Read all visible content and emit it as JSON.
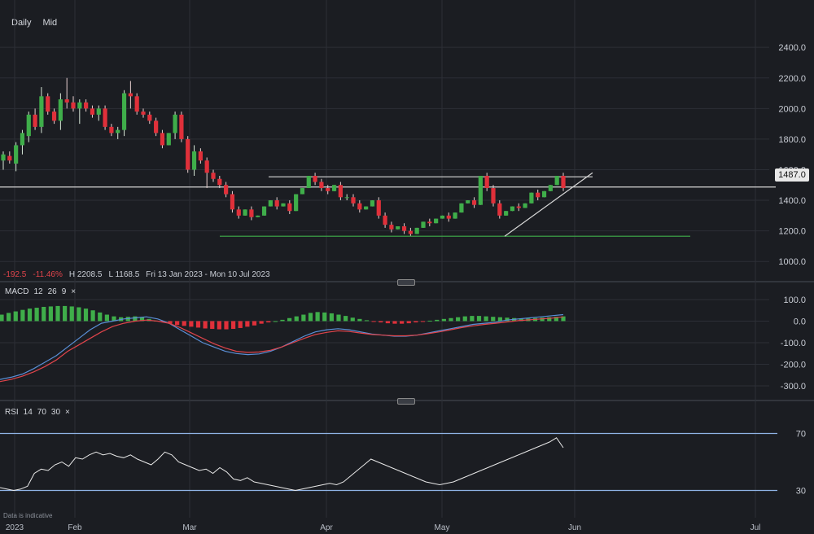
{
  "toolbar": {
    "daily": "Daily",
    "mid": "Mid"
  },
  "stats": {
    "change": "-192.5",
    "change_pct": "-11.46%",
    "high": "H 2208.5",
    "low": "L 1168.5",
    "range": "Fri 13 Jan 2023 - Mon 10 Jul 2023"
  },
  "price_badge": "1487.0",
  "macd_legend": {
    "name": "MACD",
    "p1": "12",
    "p2": "26",
    "p3": "9",
    "close": "×"
  },
  "rsi_legend": {
    "name": "RSI",
    "p1": "14",
    "p2": "70",
    "p3": "30",
    "close": "×"
  },
  "footnote": "Data is indicative",
  "colors": {
    "up": "#3fae4a",
    "down": "#e0303a",
    "macd": "#5a8fd6",
    "signal": "#e0444b",
    "rsi": "#e8e8e8",
    "band": "#8fb3e6",
    "support": "#3fae4a"
  },
  "chart_data": [
    {
      "type": "candlestick",
      "ylim": [
        900,
        2550
      ],
      "y_ticks": [
        "2400.0",
        "2200.0",
        "2000.0",
        "1800.0",
        "1600.0",
        "1400.0",
        "1200.0",
        "1000.0"
      ],
      "y_tick_values": [
        2400,
        2200,
        2000,
        1800,
        1600,
        1400,
        1200,
        1000
      ],
      "x_labels": [
        "2023",
        "Feb",
        "Mar",
        "Apr",
        "May",
        "Jun",
        "Jul"
      ],
      "current_price": 1487,
      "resistance": 1575,
      "support": 1165,
      "trend_line": [
        [
          1165,
          1580
        ]
      ],
      "candles": [
        [
          1660,
          1700,
          1620,
          1720,
          1600
        ],
        [
          1690,
          1660,
          1720,
          1640
        ],
        [
          1640,
          1760,
          1600,
          1780,
          1590
        ],
        [
          1760,
          1840,
          1720,
          1860,
          1700
        ],
        [
          1820,
          1960,
          1800,
          1980,
          1780
        ],
        [
          1960,
          1880,
          2000,
          1860
        ],
        [
          1880,
          2080,
          1860,
          2140,
          1840
        ],
        [
          2080,
          1980,
          2100,
          1960
        ],
        [
          1980,
          1920,
          2000,
          1900
        ],
        [
          1920,
          2060,
          1880,
          2100,
          1860
        ],
        [
          2060,
          2040,
          2200,
          2000
        ],
        [
          2040,
          2000,
          2080,
          1980
        ],
        [
          2000,
          2040,
          1980,
          2060,
          1900
        ],
        [
          2040,
          2000,
          2060,
          1980
        ],
        [
          2000,
          1960,
          2020,
          1940
        ],
        [
          1960,
          2000,
          1940,
          2020,
          1920
        ],
        [
          2000,
          1880,
          2020,
          1860
        ],
        [
          1880,
          1840,
          1900,
          1820
        ],
        [
          1840,
          1860,
          1820,
          1880,
          1800
        ],
        [
          1860,
          2100,
          1840,
          2120,
          1820
        ],
        [
          2100,
          2080,
          2180,
          2000
        ],
        [
          2080,
          1980,
          2100,
          1960
        ],
        [
          1980,
          1960,
          2000,
          1940
        ],
        [
          1960,
          1920,
          1980,
          1900
        ],
        [
          1920,
          1840,
          1940,
          1820
        ],
        [
          1840,
          1760,
          1860,
          1740
        ],
        [
          1760,
          1840,
          1740,
          1860
        ],
        [
          1840,
          1960,
          1820,
          1980,
          1800
        ],
        [
          1960,
          1800,
          1980,
          1780
        ],
        [
          1800,
          1600,
          1820,
          1580
        ],
        [
          1600,
          1720,
          1580,
          1760,
          1560
        ],
        [
          1720,
          1660,
          1740,
          1640
        ],
        [
          1660,
          1580,
          1680,
          1480
        ],
        [
          1580,
          1540,
          1600,
          1520
        ],
        [
          1540,
          1500,
          1560,
          1480
        ],
        [
          1500,
          1440,
          1520,
          1420
        ],
        [
          1440,
          1340,
          1460,
          1320
        ],
        [
          1340,
          1300,
          1360,
          1280
        ],
        [
          1300,
          1340,
          1280,
          1360
        ],
        [
          1340,
          1290,
          1360,
          1270
        ],
        [
          1290,
          1300,
          1280,
          1320
        ],
        [
          1300,
          1360,
          1290,
          1380
        ],
        [
          1360,
          1400,
          1340,
          1420
        ],
        [
          1400,
          1360,
          1420,
          1340
        ],
        [
          1360,
          1380,
          1340,
          1400
        ],
        [
          1380,
          1330,
          1400,
          1310
        ],
        [
          1330,
          1440,
          1320,
          1460
        ],
        [
          1440,
          1480,
          1420,
          1500
        ],
        [
          1480,
          1560,
          1460,
          1580
        ],
        [
          1560,
          1520,
          1580,
          1500
        ],
        [
          1520,
          1480,
          1540,
          1460
        ],
        [
          1480,
          1460,
          1500,
          1440
        ],
        [
          1460,
          1500,
          1440,
          1520
        ],
        [
          1500,
          1420,
          1520,
          1400
        ],
        [
          1420,
          1420,
          1440,
          1400
        ],
        [
          1420,
          1380,
          1440,
          1360
        ],
        [
          1380,
          1340,
          1400,
          1320
        ],
        [
          1340,
          1360,
          1320,
          1380
        ],
        [
          1360,
          1400,
          1340,
          1420
        ],
        [
          1400,
          1300,
          1420,
          1280
        ],
        [
          1300,
          1240,
          1320,
          1220
        ],
        [
          1240,
          1210,
          1260,
          1190
        ],
        [
          1210,
          1230,
          1190,
          1250
        ],
        [
          1230,
          1200,
          1250,
          1180
        ],
        [
          1200,
          1180,
          1220,
          1168
        ],
        [
          1180,
          1220,
          1170,
          1240
        ],
        [
          1220,
          1260,
          1210,
          1280
        ],
        [
          1260,
          1250,
          1280,
          1230
        ],
        [
          1250,
          1280,
          1240,
          1300
        ],
        [
          1280,
          1300,
          1270,
          1320
        ],
        [
          1300,
          1280,
          1320,
          1260
        ],
        [
          1280,
          1320,
          1270,
          1340
        ],
        [
          1320,
          1380,
          1300,
          1400
        ],
        [
          1380,
          1400,
          1360,
          1420
        ],
        [
          1400,
          1370,
          1420,
          1350
        ],
        [
          1370,
          1560,
          1360,
          1580
        ],
        [
          1560,
          1480,
          1580,
          1460
        ],
        [
          1480,
          1380,
          1500,
          1360
        ],
        [
          1380,
          1300,
          1400,
          1280
        ],
        [
          1300,
          1330,
          1280,
          1350
        ],
        [
          1330,
          1360,
          1320,
          1380
        ],
        [
          1360,
          1350,
          1380,
          1330
        ],
        [
          1350,
          1380,
          1340,
          1400
        ],
        [
          1380,
          1450,
          1360,
          1470
        ],
        [
          1450,
          1420,
          1470,
          1400
        ],
        [
          1420,
          1460,
          1400,
          1480
        ],
        [
          1460,
          1500,
          1440,
          1520
        ],
        [
          1500,
          1560,
          1480,
          1580
        ],
        [
          1560,
          1480,
          1580,
          1460
        ]
      ]
    },
    {
      "type": "macd",
      "ylim": [
        -330,
        130
      ],
      "y_ticks": [
        "100.0",
        "0.0",
        "-100.0",
        "-200.0",
        "-300.0"
      ],
      "y_tick_values": [
        100,
        0,
        -100,
        -200,
        -300
      ],
      "histogram": [
        30,
        38,
        45,
        52,
        58,
        62,
        66,
        68,
        70,
        70,
        68,
        64,
        58,
        50,
        40,
        30,
        22,
        18,
        20,
        22,
        18,
        10,
        2,
        -6,
        -12,
        -18,
        -22,
        -26,
        -30,
        -34,
        -36,
        -38,
        -38,
        -36,
        -32,
        -26,
        -20,
        -12,
        -6,
        0,
        6,
        14,
        22,
        30,
        38,
        42,
        40,
        36,
        30,
        24,
        16,
        10,
        4,
        -2,
        -6,
        -10,
        -12,
        -12,
        -10,
        -6,
        -2,
        2,
        6,
        10,
        14,
        18,
        22,
        24,
        24,
        22,
        20,
        18,
        16,
        14,
        12,
        12,
        14,
        16,
        18,
        20,
        22
      ],
      "macd_line": [
        -270,
        -260,
        -245,
        -220,
        -190,
        -160,
        -120,
        -80,
        -40,
        -10,
        0,
        10,
        15,
        20,
        10,
        -10,
        -40,
        -70,
        -100,
        -120,
        -140,
        -150,
        -155,
        -152,
        -140,
        -120,
        -95,
        -70,
        -50,
        -40,
        -35,
        -40,
        -50,
        -60,
        -65,
        -70,
        -70,
        -65,
        -55,
        -45,
        -35,
        -25,
        -15,
        -10,
        -5,
        5,
        10,
        15,
        20,
        25,
        30
      ],
      "signal_line": [
        -280,
        -270,
        -255,
        -235,
        -210,
        -180,
        -140,
        -110,
        -80,
        -50,
        -25,
        -10,
        0,
        5,
        0,
        -10,
        -30,
        -55,
        -80,
        -105,
        -125,
        -140,
        -145,
        -143,
        -135,
        -120,
        -100,
        -80,
        -62,
        -52,
        -45,
        -48,
        -55,
        -62,
        -65,
        -68,
        -68,
        -65,
        -58,
        -50,
        -40,
        -30,
        -22,
        -15,
        -10,
        -4,
        2,
        6,
        10,
        14,
        20
      ]
    },
    {
      "type": "rsi",
      "ylim": [
        20,
        80
      ],
      "y_ticks": [
        "70",
        "30"
      ],
      "y_tick_values": [
        70,
        30
      ],
      "values": [
        32,
        31,
        30,
        31,
        33,
        42,
        45,
        44,
        48,
        50,
        47,
        53,
        52,
        55,
        57,
        55,
        56,
        54,
        53,
        55,
        52,
        50,
        48,
        52,
        57,
        55,
        50,
        48,
        46,
        44,
        45,
        42,
        46,
        43,
        38,
        37,
        39,
        36,
        35,
        34,
        33,
        32,
        31,
        30,
        31,
        32,
        33,
        34,
        35,
        34,
        36,
        40,
        44,
        48,
        52,
        50,
        48,
        46,
        44,
        42,
        40,
        38,
        36,
        35,
        34,
        35,
        36,
        38,
        40,
        42,
        44,
        46,
        48,
        50,
        52,
        54,
        56,
        58,
        60,
        62,
        64,
        67,
        60
      ]
    }
  ]
}
